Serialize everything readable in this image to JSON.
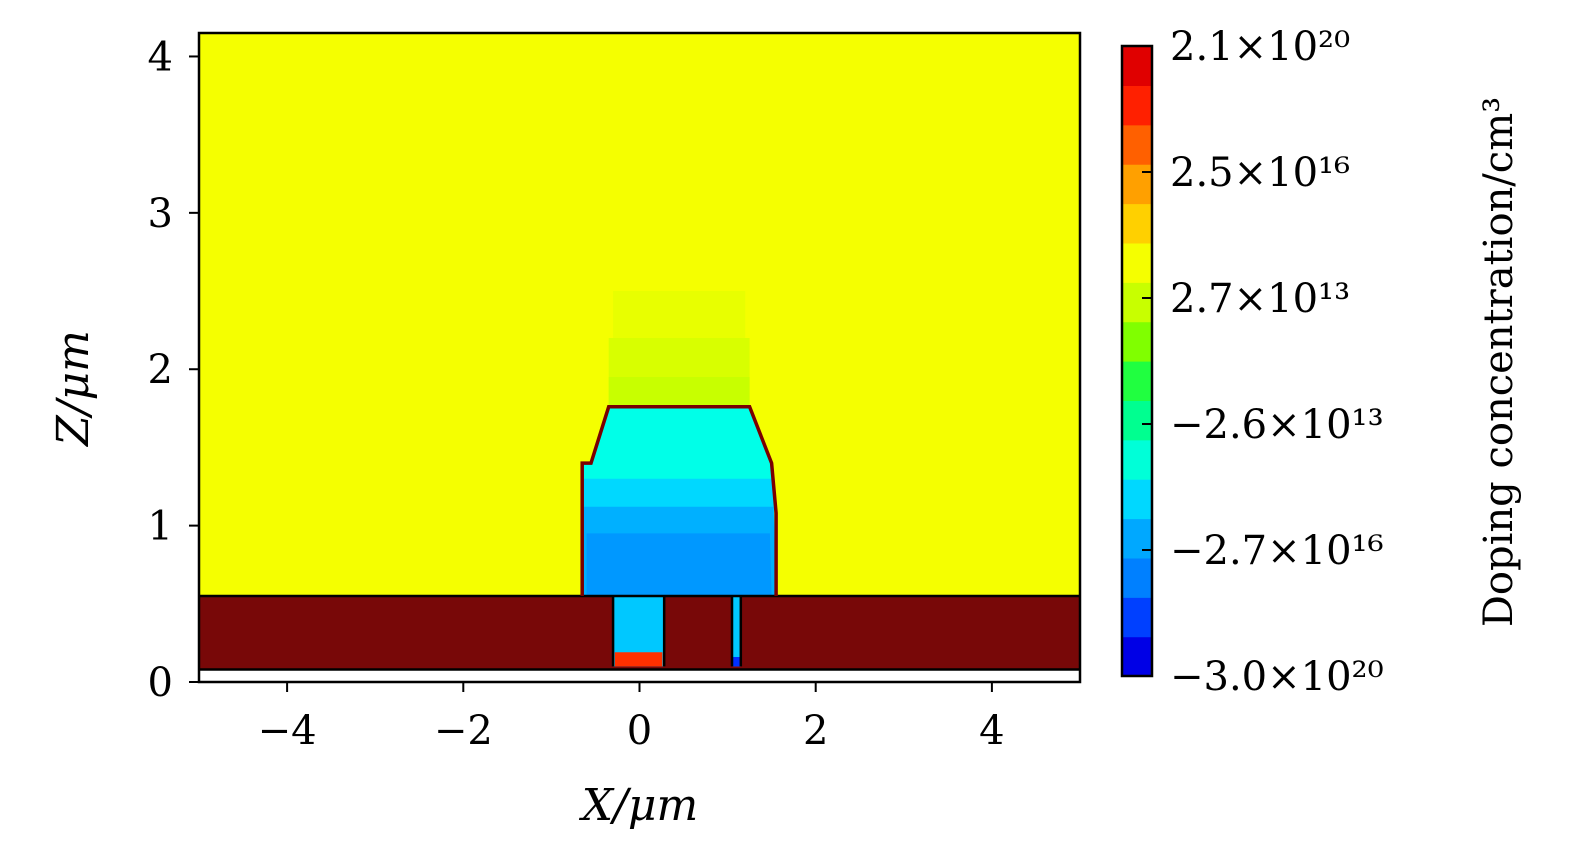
{
  "chart_data": {
    "type": "heatmap",
    "title": "",
    "xlabel": "X/μm",
    "ylabel": "Z/μm",
    "xlim": [
      -5,
      5
    ],
    "ylim": [
      0,
      4.15
    ],
    "x_ticks": [
      {
        "value": -4,
        "label": "−4"
      },
      {
        "value": -2,
        "label": "−2"
      },
      {
        "value": 0,
        "label": "0"
      },
      {
        "value": 2,
        "label": "2"
      },
      {
        "value": 4,
        "label": "4"
      }
    ],
    "y_ticks": [
      {
        "value": 0,
        "label": "0"
      },
      {
        "value": 1,
        "label": "1"
      },
      {
        "value": 2,
        "label": "2"
      },
      {
        "value": 3,
        "label": "3"
      },
      {
        "value": 4,
        "label": "4"
      }
    ],
    "colorbar": {
      "label": "Doping concentration/cm³",
      "position": "right",
      "ticks": [
        {
          "label": "2.1×10²⁰",
          "fraction": 1.0
        },
        {
          "label": "2.5×10¹⁶",
          "fraction": 0.8
        },
        {
          "label": "2.7×10¹³",
          "fraction": 0.6
        },
        {
          "label": "−2.6×10¹³",
          "fraction": 0.4
        },
        {
          "label": "−2.7×10¹⁶",
          "fraction": 0.2
        },
        {
          "label": "−3.0×10²⁰",
          "fraction": 0.0
        }
      ],
      "colors": [
        "#0000e6",
        "#0040ff",
        "#0080ff",
        "#00a8ff",
        "#00d8ff",
        "#00ffd8",
        "#00ff90",
        "#20ff40",
        "#80ff00",
        "#c8ff00",
        "#f5ff00",
        "#ffd000",
        "#ffa000",
        "#ff6000",
        "#ff2000",
        "#e00000"
      ]
    },
    "regions": [
      {
        "name": "background",
        "color": "#f5ff00",
        "points": [
          [
            -5,
            0.5
          ],
          [
            5,
            0.5
          ],
          [
            5,
            4.15
          ],
          [
            -5,
            4.15
          ]
        ]
      },
      {
        "name": "upper-gradient-1",
        "color": "#e8ff00",
        "points": [
          [
            -0.3,
            1.8
          ],
          [
            1.2,
            1.8
          ],
          [
            1.2,
            2.5
          ],
          [
            -0.3,
            2.5
          ]
        ]
      },
      {
        "name": "upper-gradient-2",
        "color": "#d8ff00",
        "points": [
          [
            -0.35,
            1.76
          ],
          [
            1.25,
            1.76
          ],
          [
            1.25,
            2.2
          ],
          [
            -0.35,
            2.2
          ]
        ]
      },
      {
        "name": "upper-gradient-3",
        "color": "#c8ff00",
        "points": [
          [
            -0.35,
            1.76
          ],
          [
            1.25,
            1.76
          ],
          [
            1.25,
            1.95
          ],
          [
            -0.35,
            1.95
          ]
        ]
      },
      {
        "name": "mesa-cyan",
        "color": "#00ffe8",
        "points": [
          [
            -0.65,
            0.55
          ],
          [
            1.55,
            0.55
          ],
          [
            1.5,
            1.4
          ],
          [
            1.25,
            1.76
          ],
          [
            -0.35,
            1.76
          ],
          [
            -0.55,
            1.4
          ],
          [
            -0.65,
            1.4
          ]
        ]
      },
      {
        "name": "mesa-light-blue",
        "color": "#00d8ff",
        "points": [
          [
            -0.65,
            0.55
          ],
          [
            1.55,
            0.55
          ],
          [
            1.52,
            1.3
          ],
          [
            -0.65,
            1.3
          ]
        ]
      },
      {
        "name": "mesa-blue",
        "color": "#00b0ff",
        "points": [
          [
            -0.65,
            0.55
          ],
          [
            1.55,
            0.55
          ],
          [
            1.52,
            1.12
          ],
          [
            -0.65,
            1.12
          ]
        ]
      },
      {
        "name": "mesa-deep-blue",
        "color": "#0098ff",
        "points": [
          [
            -0.6,
            0.55
          ],
          [
            1.5,
            0.55
          ],
          [
            1.48,
            0.95
          ],
          [
            -0.6,
            0.95
          ]
        ]
      },
      {
        "name": "substrate",
        "color": "#780808",
        "points": [
          [
            -5,
            0.08
          ],
          [
            5,
            0.08
          ],
          [
            5,
            0.55
          ],
          [
            -5,
            0.55
          ]
        ]
      },
      {
        "name": "contact-left",
        "color": "#00c8ff",
        "points": [
          [
            -0.3,
            0.1
          ],
          [
            0.28,
            0.1
          ],
          [
            0.28,
            0.55
          ],
          [
            -0.3,
            0.55
          ]
        ]
      },
      {
        "name": "contact-left-bottom",
        "color": "#ff3000",
        "points": [
          [
            -0.28,
            0.1
          ],
          [
            0.26,
            0.1
          ],
          [
            0.26,
            0.19
          ],
          [
            -0.28,
            0.19
          ]
        ]
      },
      {
        "name": "contact-right",
        "color": "#00c8ff",
        "points": [
          [
            1.05,
            0.1
          ],
          [
            1.15,
            0.1
          ],
          [
            1.15,
            0.55
          ],
          [
            1.05,
            0.55
          ]
        ]
      },
      {
        "name": "contact-right-bottom",
        "color": "#0030ff",
        "points": [
          [
            1.05,
            0.1
          ],
          [
            1.15,
            0.1
          ],
          [
            1.15,
            0.16
          ],
          [
            1.05,
            0.16
          ]
        ]
      }
    ],
    "outlines": [
      {
        "name": "mesa-outline",
        "color": "#7a0000",
        "points": [
          [
            -0.65,
            0.55
          ],
          [
            -0.65,
            1.4
          ],
          [
            -0.55,
            1.4
          ],
          [
            -0.35,
            1.76
          ],
          [
            1.25,
            1.76
          ],
          [
            1.5,
            1.4
          ],
          [
            1.55,
            1.08
          ],
          [
            1.55,
            0.55
          ]
        ]
      },
      {
        "name": "mesa-top-edge",
        "color": "#7a0000",
        "points": [
          [
            -0.35,
            1.76
          ],
          [
            1.25,
            1.76
          ]
        ]
      }
    ]
  }
}
